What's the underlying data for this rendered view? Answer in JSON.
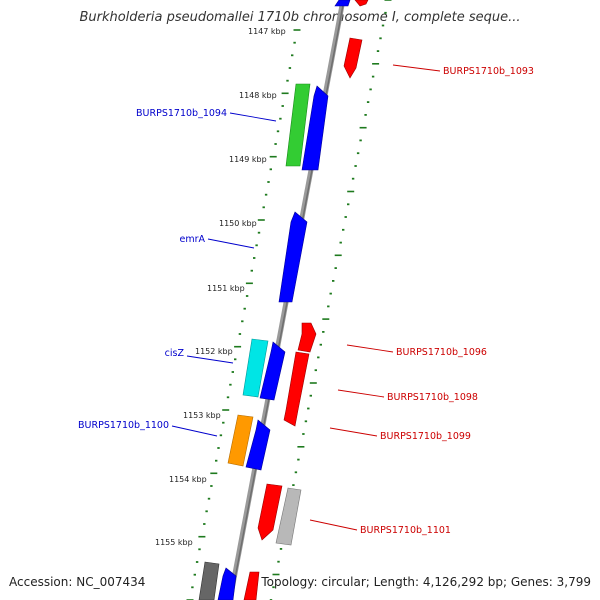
{
  "title": "Burkholderia pseudomallei 1710b chromosome I, complete seque...",
  "footer": {
    "accession": "Accession: NC_007434",
    "summary": "Topology: circular; Length: 4,126,292 bp; Genes: 3,799"
  },
  "colors": {
    "backbone": "#888888",
    "tick": "#1e7a1e",
    "forward_label": "#0000cc",
    "reverse_label": "#cc0000",
    "blue_feature": "#0000ff",
    "red_feature": "#ff0000",
    "green_feature": "#33cc33",
    "cyan_feature": "#00e5e5",
    "orange_feature": "#ff9900",
    "grey_feature": "#b0b0b0",
    "darkgrey_feature": "#666666"
  },
  "kbp_ticks": [
    "1147 kbp",
    "1148 kbp",
    "1149 kbp",
    "1150 kbp",
    "1151 kbp",
    "1152 kbp",
    "1153 kbp",
    "1154 kbp",
    "1155 kbp"
  ],
  "gene_labels": [
    {
      "text": "BURPS1710b_1093",
      "strand": "reverse"
    },
    {
      "text": "BURPS1710b_1094",
      "strand": "forward"
    },
    {
      "text": "emrA",
      "strand": "forward"
    },
    {
      "text": "BURPS1710b_1096",
      "strand": "reverse"
    },
    {
      "text": "cisZ",
      "strand": "forward"
    },
    {
      "text": "BURPS1710b_1098",
      "strand": "reverse"
    },
    {
      "text": "BURPS1710b_1100",
      "strand": "forward"
    },
    {
      "text": "BURPS1710b_1099",
      "strand": "reverse"
    },
    {
      "text": "BURPS1710b_1101",
      "strand": "reverse"
    }
  ]
}
